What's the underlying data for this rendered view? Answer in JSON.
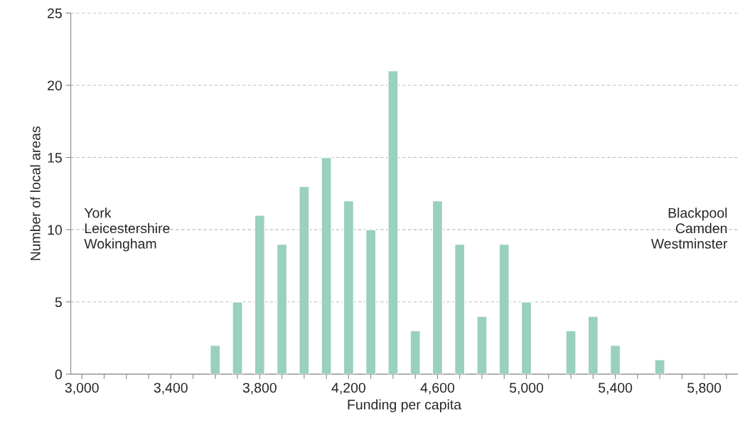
{
  "chart_data": {
    "type": "bar",
    "xlabel": "Funding per capita",
    "ylabel": "Number of local areas",
    "categories": [
      "3,000",
      null,
      null,
      null,
      "3,400",
      null,
      null,
      null,
      "3,800",
      null,
      null,
      null,
      "4,200",
      null,
      null,
      null,
      "4,600",
      null,
      null,
      null,
      "5,000",
      null,
      null,
      null,
      "5,400",
      null,
      null,
      null,
      "5,800",
      null
    ],
    "values": [
      null,
      null,
      null,
      null,
      null,
      null,
      2,
      5,
      11,
      9,
      13,
      15,
      12,
      10,
      21,
      3,
      12,
      9,
      4,
      9,
      5,
      null,
      3,
      4,
      2,
      null,
      1,
      null,
      null,
      null
    ],
    "color": "#99d1bc",
    "ylim": [
      0,
      25
    ],
    "yticks": [
      0,
      5,
      10,
      15,
      20,
      25
    ],
    "grid": "y",
    "annotations": [
      "York\nLeicestershire\nWokingham",
      "Blackpool\nCamden\nWestminster"
    ]
  }
}
